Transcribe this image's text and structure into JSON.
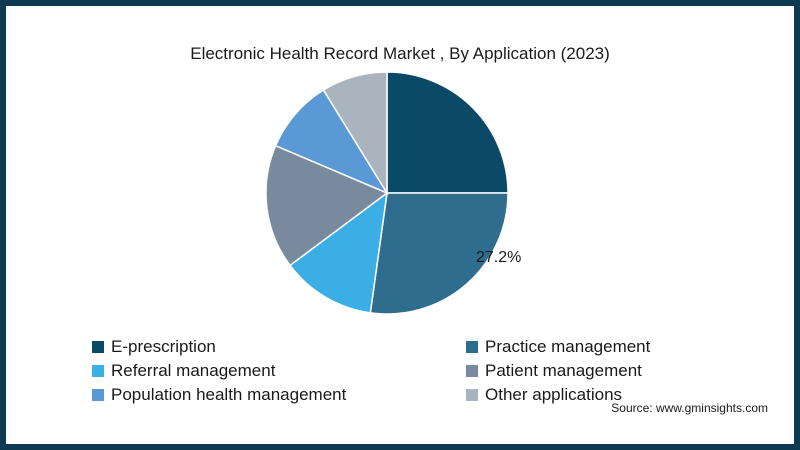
{
  "chart_data": {
    "type": "pie",
    "title": "Electronic Health Record Market , By Application (2023)",
    "categories": [
      "E-prescription",
      "Practice management",
      "Referral management",
      "Patient management",
      "Population health management",
      "Other applications"
    ],
    "values": [
      25.0,
      27.2,
      12.6,
      16.6,
      9.8,
      8.8
    ],
    "colors": [
      "#0a4a66",
      "#2e6d8e",
      "#3aaee5",
      "#7a8a9e",
      "#5a98d6",
      "#a9b4bf"
    ],
    "data_labels": [
      {
        "category": "Practice management",
        "text": "27.2%"
      }
    ],
    "legend_position": "bottom"
  },
  "source": "Source: www.gminsights.com"
}
